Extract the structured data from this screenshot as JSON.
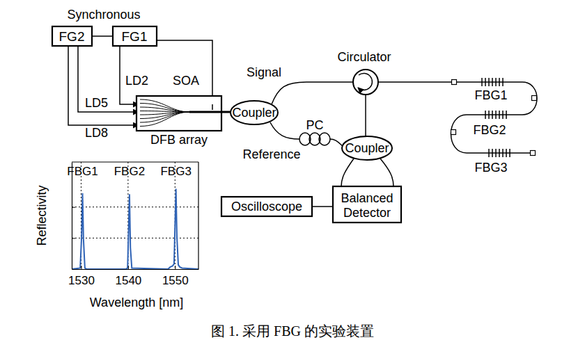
{
  "diagram": {
    "title": "Synchronous",
    "nodes": {
      "fg2": "FG2",
      "fg1": "FG1",
      "dfb": "DFB array",
      "coupler1": "Coupler",
      "coupler2": "Coupler",
      "circulator": "Circulator",
      "pc": "PC",
      "detector": "Balanced Detector",
      "oscilloscope": "Oscilloscope"
    },
    "signals": {
      "ld2": "LD2",
      "soa": "SOA",
      "ld5": "LD5",
      "ld8": "LD8"
    },
    "paths": {
      "signal": "Signal",
      "reference": "Reference"
    },
    "gratings": [
      "FBG1",
      "FBG2",
      "FBG3"
    ],
    "caption": "图 1. 采用 FBG 的实验装置"
  },
  "chart_data": {
    "type": "line",
    "x_label": "Wavelength [nm]",
    "y_label": "Reflectivity",
    "x": [
      1528,
      1529.8,
      1530.1,
      1530.3,
      1530.5,
      1530.8,
      1531.2,
      1539.5,
      1539.9,
      1540.1,
      1540.3,
      1540.5,
      1540.8,
      1548.5,
      1549.0,
      1549.5,
      1549.8,
      1550.0,
      1550.2,
      1550.4,
      1550.7,
      1551.0,
      1551.5,
      1555
    ],
    "series": [
      {
        "color": "#2f63b6",
        "values": [
          0,
          0.01,
          0.3,
          0.71,
          0.28,
          0.01,
          0,
          0,
          0.01,
          0.35,
          0.7,
          0.2,
          0.01,
          0,
          0.02,
          0.03,
          0.05,
          0.4,
          0.75,
          0.3,
          0.04,
          0.02,
          0.01,
          0
        ]
      }
    ],
    "xlim": [
      1528,
      1555
    ],
    "xticks": [
      1530,
      1540,
      1550
    ],
    "ylim": [
      0,
      1
    ],
    "yticks": [
      0.29,
      0.58
    ],
    "grid": true,
    "tick_labels": "x",
    "annotations": [
      {
        "text": "FBG1",
        "x": 1530.3
      },
      {
        "text": "FBG2",
        "x": 1540.3
      },
      {
        "text": "FBG3",
        "x": 1550.2
      }
    ]
  }
}
